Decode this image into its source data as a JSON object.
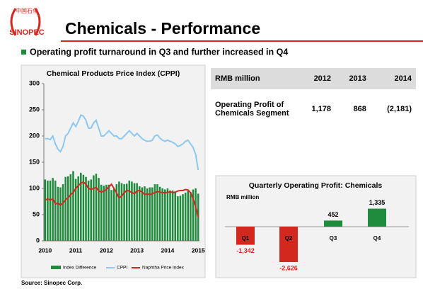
{
  "logo": {
    "chinese": "中国石化",
    "name": "SINOPEC"
  },
  "title": "Chemicals - Performance",
  "bullet": "Operating profit turnaround in Q3 and further increased in Q4",
  "table": {
    "header": [
      "RMB million",
      "2012",
      "2013",
      "2014"
    ],
    "rows": [
      [
        "Operating Profit of Chemicals Segment",
        "1,178",
        "868",
        "(2,181)"
      ]
    ]
  },
  "chart_data": [
    {
      "type": "combo",
      "title": "Chemical Products Price Index (CPPI)",
      "categories": [
        "2010",
        null,
        null,
        null,
        null,
        null,
        null,
        null,
        null,
        null,
        null,
        null,
        "2011",
        null,
        null,
        null,
        null,
        null,
        null,
        null,
        null,
        null,
        null,
        null,
        "2012",
        null,
        null,
        null,
        null,
        null,
        null,
        null,
        null,
        null,
        null,
        null,
        "2013",
        null,
        null,
        null,
        null,
        null,
        null,
        null,
        null,
        null,
        null,
        null,
        "2014",
        null,
        null,
        null,
        null,
        null,
        null,
        null,
        null,
        null,
        null,
        null,
        "2015"
      ],
      "ylim": [
        0,
        300
      ],
      "yticks": [
        0,
        50,
        100,
        150,
        200,
        250,
        300
      ],
      "series": [
        {
          "name": "Index Difference",
          "type": "bar",
          "color": "#1e8c3c",
          "values": [
            117,
            115,
            115,
            120,
            115,
            103,
            102,
            108,
            122,
            123,
            127,
            133,
            118,
            123,
            130,
            126,
            122,
            115,
            117,
            125,
            128,
            120,
            107,
            105,
            107,
            107,
            97,
            100,
            108,
            113,
            110,
            108,
            109,
            115,
            113,
            110,
            110,
            104,
            102,
            104,
            100,
            102,
            102,
            108,
            108,
            103,
            100,
            98,
            100,
            96,
            96,
            92,
            85,
            86,
            89,
            92,
            95,
            93,
            98,
            100,
            90
          ]
        },
        {
          "name": "CPPI",
          "type": "line",
          "color": "#8cc8f0",
          "values": [
            195,
            195,
            193,
            200,
            185,
            175,
            170,
            180,
            200,
            205,
            215,
            225,
            218,
            228,
            240,
            238,
            230,
            215,
            215,
            225,
            230,
            215,
            200,
            200,
            205,
            210,
            205,
            200,
            200,
            195,
            195,
            200,
            205,
            210,
            205,
            200,
            205,
            200,
            195,
            192,
            190,
            190,
            192,
            200,
            202,
            196,
            192,
            190,
            192,
            190,
            188,
            185,
            180,
            182,
            185,
            190,
            192,
            185,
            178,
            165,
            135
          ]
        },
        {
          "name": "Naphtha Price Index",
          "type": "line",
          "color": "#d2281e",
          "values": [
            78,
            80,
            78,
            80,
            70,
            72,
            68,
            72,
            78,
            82,
            88,
            92,
            100,
            105,
            110,
            112,
            108,
            100,
            98,
            100,
            102,
            95,
            93,
            95,
            98,
            103,
            108,
            100,
            92,
            82,
            85,
            92,
            96,
            95,
            92,
            90,
            95,
            96,
            93,
            88,
            90,
            88,
            90,
            92,
            94,
            93,
            92,
            92,
            92,
            94,
            92,
            93,
            95,
            96,
            96,
            98,
            97,
            92,
            80,
            65,
            45
          ]
        }
      ]
    },
    {
      "type": "bar",
      "title": "Quarterly Operating Profit: Chemicals",
      "subtitle": "RMB million",
      "categories": [
        "Q1",
        "Q2",
        "Q3",
        "Q4"
      ],
      "values": [
        -1342,
        -2626,
        452,
        1335
      ],
      "value_labels": [
        "-1,342",
        "-2,626",
        "452",
        "1,335"
      ],
      "colors": [
        "#d2281e",
        "#d2281e",
        "#1e8c3c",
        "#1e8c3c"
      ]
    }
  ],
  "source": "Source: Sinopec Corp."
}
